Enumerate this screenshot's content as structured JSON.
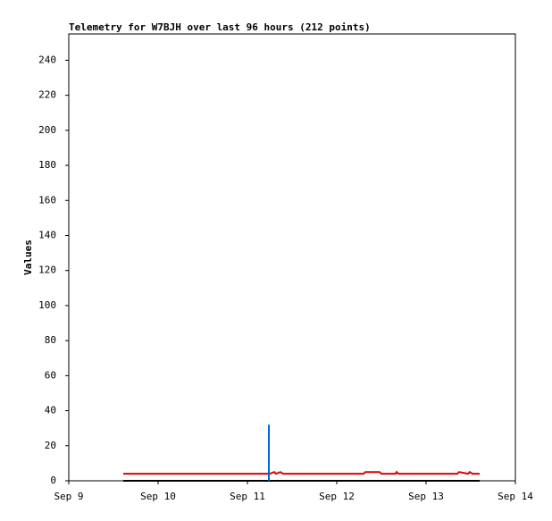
{
  "chart_data": {
    "type": "line",
    "title": "Telemetry for W7BJH over last 96 hours (212 points)",
    "y_label": "Values",
    "xlim": [
      9,
      14
    ],
    "xticks": [
      {
        "value": 9,
        "label": "Sep 9"
      },
      {
        "value": 10,
        "label": "Sep 10"
      },
      {
        "value": 11,
        "label": "Sep 11"
      },
      {
        "value": 12,
        "label": "Sep 12"
      },
      {
        "value": 13,
        "label": "Sep 13"
      },
      {
        "value": 14,
        "label": "Sep 14"
      }
    ],
    "ylim": [
      0,
      255
    ],
    "yticks": [
      0,
      20,
      40,
      60,
      80,
      100,
      120,
      140,
      160,
      180,
      200,
      220,
      240
    ],
    "series": [
      {
        "color": "#000000",
        "x": [
          9.61,
          13.6
        ],
        "values": [
          0,
          0
        ]
      },
      {
        "color": "#dd0000",
        "x": [
          9.61,
          11.25,
          11.3,
          11.32,
          11.37,
          11.4,
          12.3,
          12.32,
          12.48,
          12.5,
          12.66,
          12.67,
          12.69,
          13.35,
          13.37,
          13.47,
          13.49,
          13.52,
          13.6
        ],
        "values": [
          4,
          4,
          5,
          4,
          5,
          4,
          4,
          5,
          5,
          4,
          4,
          5,
          4,
          4,
          5,
          4,
          5,
          4,
          4
        ]
      },
      {
        "color": "#0066cc",
        "x": [
          11.24,
          11.24
        ],
        "values": [
          0,
          32
        ]
      }
    ]
  }
}
